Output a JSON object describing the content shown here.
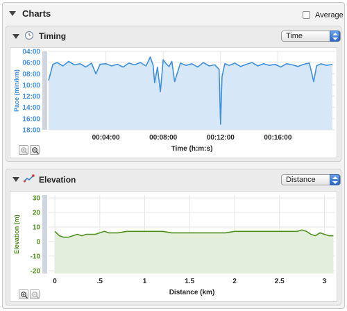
{
  "header": {
    "title": "Charts",
    "average_label": "Average"
  },
  "timing": {
    "title": "Timing",
    "select_value": "Time",
    "line_color": "#3d8fdc",
    "fill_color": "#d6e8f8",
    "chart_data": {
      "type": "area",
      "ylabel": "Pace (min/km)",
      "xlabel": "Time (h:m:s)",
      "y_ticks": [
        "04:00",
        "06:00",
        "08:00",
        "10:00",
        "12:00",
        "14:00",
        "16:00",
        "18:00"
      ],
      "y_tick_minutes": [
        4,
        6,
        8,
        10,
        12,
        14,
        16,
        18
      ],
      "ylim_minutes": [
        4,
        18
      ],
      "y_inverted": true,
      "x_ticks": [
        "00:04:00",
        "00:08:00",
        "00:12:00",
        "00:16:00"
      ],
      "x_tick_minutes": [
        4,
        8,
        12,
        16
      ],
      "xlim_minutes": [
        0,
        20
      ],
      "grid": true,
      "series": [
        {
          "x": [
            0,
            0.3,
            0.6,
            1,
            1.4,
            1.8,
            2.2,
            2.6,
            3,
            3.3,
            3.6,
            4,
            4.4,
            4.8,
            5.2,
            5.6,
            6,
            6.4,
            6.8,
            7.1,
            7.3,
            7.4,
            7.6,
            7.8,
            8.0,
            8.2,
            8.4,
            8.6,
            8.8,
            9.2,
            9.6,
            10,
            10.4,
            10.8,
            11.2,
            11.6,
            11.9,
            12.0,
            12.1,
            12.3,
            12.6,
            13,
            13.4,
            13.8,
            14.2,
            14.6,
            15,
            15.4,
            15.8,
            16.2,
            16.6,
            17,
            17.4,
            17.8,
            18.2,
            18.5,
            18.7,
            19,
            19.4,
            19.8
          ],
          "y": [
            9.2,
            6.3,
            6.0,
            6.6,
            5.8,
            6.4,
            6.2,
            6.8,
            6.1,
            8.0,
            6.3,
            6.2,
            6.6,
            6.3,
            6.8,
            6.1,
            6.4,
            6.0,
            6.6,
            5.0,
            6.5,
            9.6,
            6.8,
            11.2,
            5.5,
            6.2,
            6.7,
            5.8,
            9.4,
            6.1,
            6.5,
            6.2,
            6.8,
            6.0,
            6.6,
            6.4,
            7.2,
            17.0,
            8.5,
            6.2,
            6.5,
            6.1,
            6.7,
            6.3,
            6.0,
            6.6,
            6.2,
            6.5,
            6.3,
            6.8,
            6.2,
            6.4,
            6.7,
            6.3,
            6.1,
            9.4,
            6.6,
            6.2,
            6.5,
            6.3
          ]
        }
      ]
    }
  },
  "elevation": {
    "title": "Elevation",
    "select_value": "Distance",
    "line_color": "#4e8f1f",
    "fill_color": "#e3efda",
    "chart_data": {
      "type": "area",
      "ylabel": "Elevation (m)",
      "xlabel": "Distance (km)",
      "y_ticks": [
        "30",
        "20",
        "10",
        "0",
        "-10",
        "-20"
      ],
      "y_tick_values": [
        30,
        20,
        10,
        0,
        -10,
        -20
      ],
      "ylim": [
        -22,
        32
      ],
      "x_ticks": [
        "0",
        ".5",
        "1",
        "1.5",
        "2",
        "2.5",
        "3"
      ],
      "x_tick_values": [
        0,
        0.5,
        1,
        1.5,
        2,
        2.5,
        3
      ],
      "xlim": [
        -0.07,
        3.12
      ],
      "grid": true,
      "series": [
        {
          "x": [
            0,
            0.05,
            0.1,
            0.15,
            0.2,
            0.25,
            0.3,
            0.35,
            0.4,
            0.45,
            0.5,
            0.55,
            0.6,
            0.7,
            0.8,
            0.9,
            1.0,
            1.1,
            1.2,
            1.3,
            1.4,
            1.5,
            1.6,
            1.7,
            1.8,
            1.9,
            2.0,
            2.1,
            2.2,
            2.3,
            2.4,
            2.5,
            2.6,
            2.7,
            2.75,
            2.8,
            2.85,
            2.9,
            2.95,
            3.0,
            3.05,
            3.1
          ],
          "y": [
            7,
            4,
            3,
            3,
            4,
            5,
            4,
            5,
            5,
            5,
            6,
            7,
            6,
            6,
            7,
            7,
            7,
            7,
            7,
            6,
            6,
            6,
            6,
            6,
            6,
            6,
            7,
            7,
            7,
            7,
            7,
            7,
            7,
            7,
            8,
            7,
            5,
            4,
            6,
            5,
            4,
            4
          ]
        }
      ]
    }
  }
}
